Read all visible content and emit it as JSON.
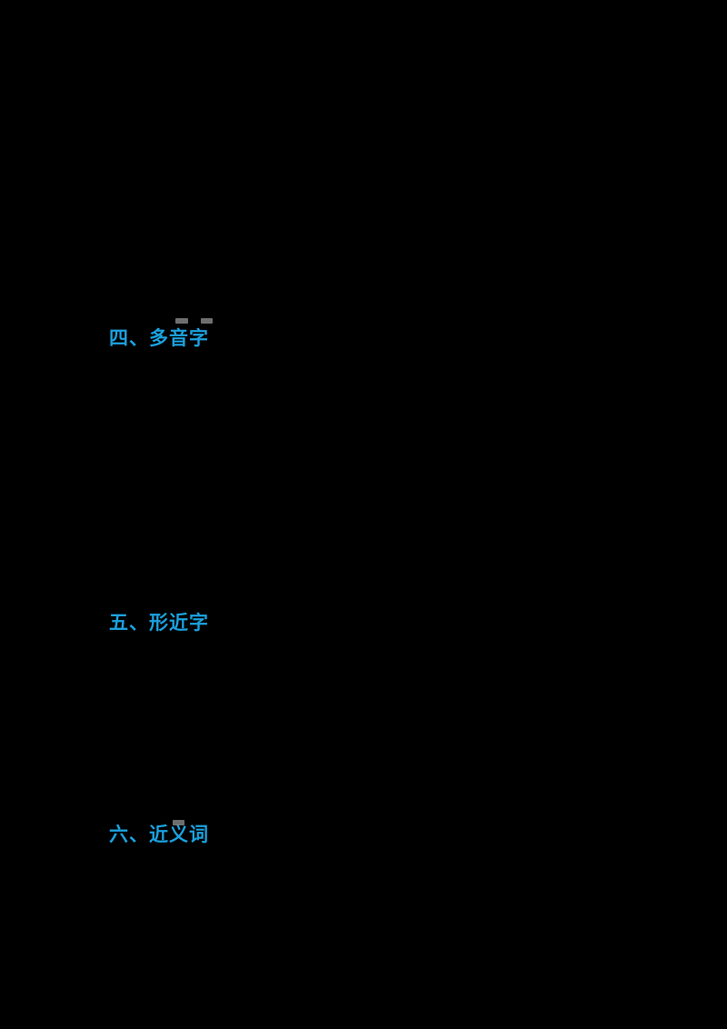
{
  "page": {
    "kind": "chinese-language-worksheet-on-black-background"
  },
  "colors": {
    "background": "#000000",
    "heading_blue": "#1BA0DC",
    "remnant_gray": "#8A8A8A"
  },
  "sections": [
    {
      "number": "四",
      "title": "多音字",
      "label": "四、多音字"
    },
    {
      "number": "五",
      "title": "形近字",
      "label": "五、形近字"
    },
    {
      "number": "六",
      "title": "近义词",
      "label": "六、近义词"
    }
  ],
  "artifacts": {
    "description": "faint gray pinyin-remnant marks above heading characters",
    "marks": [
      {
        "name": "remnant-mark-above-yin"
      },
      {
        "name": "remnant-mark-above-zi"
      },
      {
        "name": "remnant-mark-above-yi"
      }
    ]
  }
}
